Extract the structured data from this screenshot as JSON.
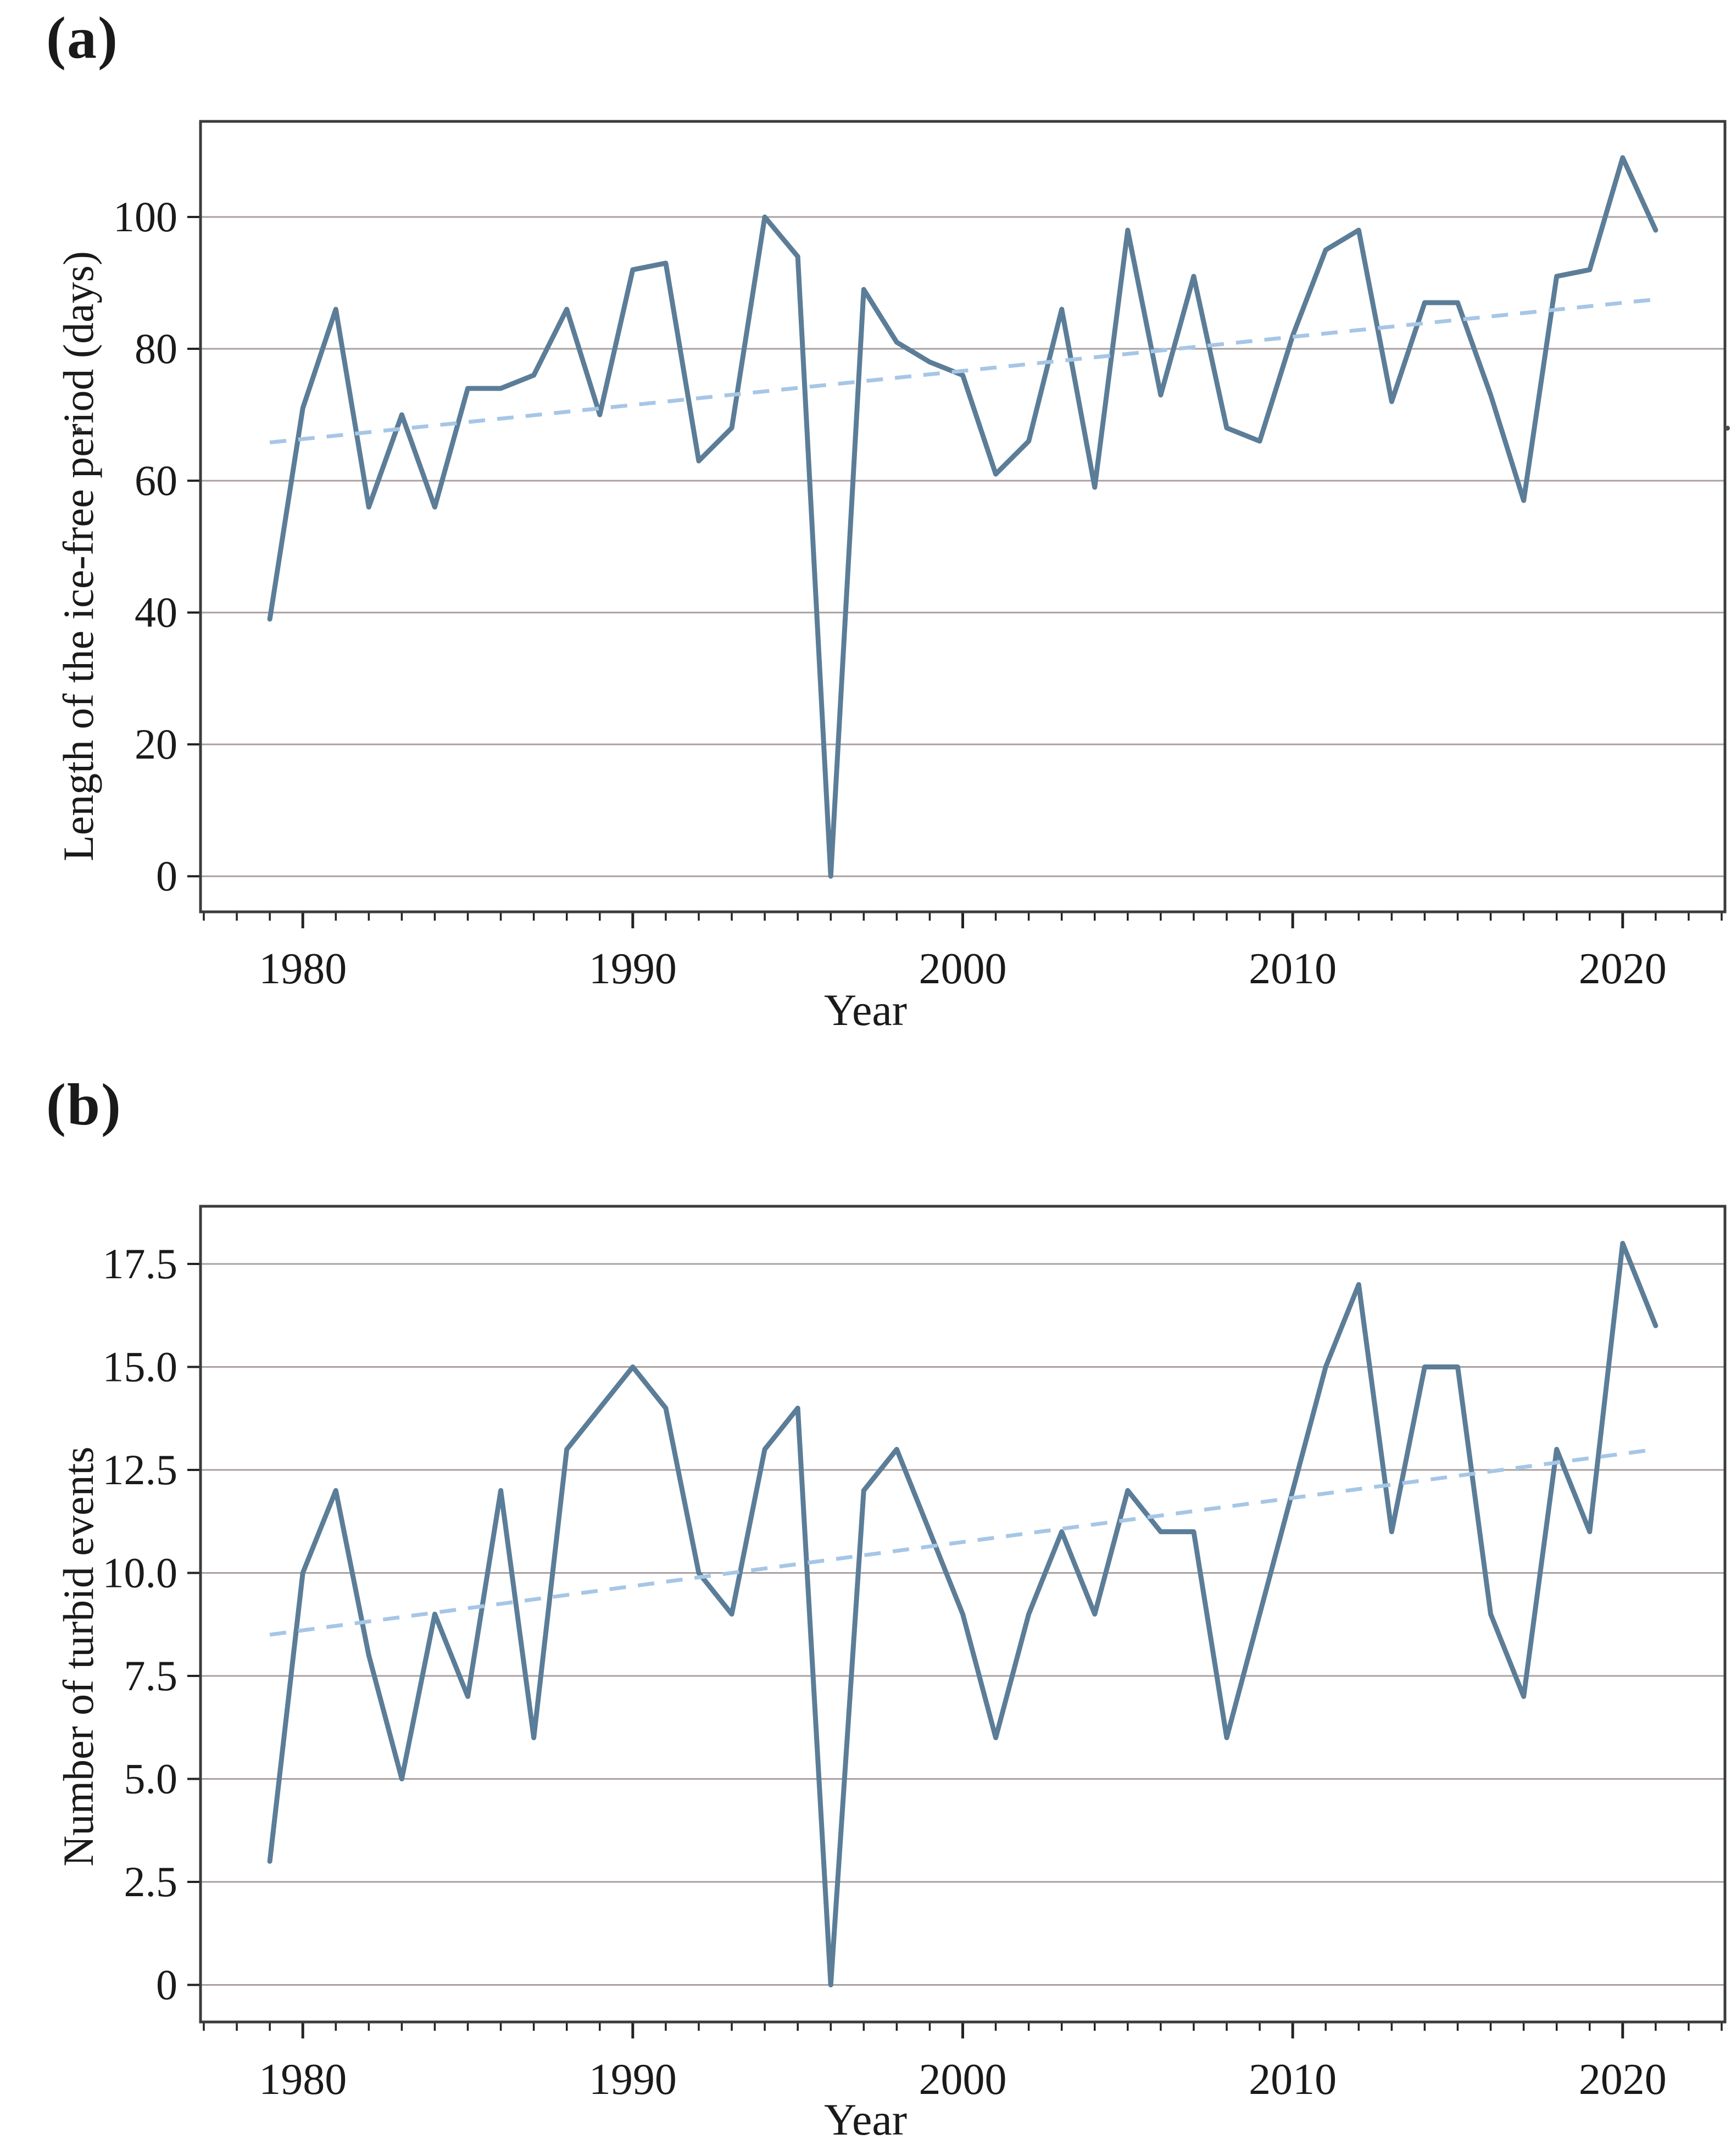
{
  "panel_a": {
    "label": "(a)",
    "ylabel": "Length of the ice-free period (days)",
    "xlabel": "Year"
  },
  "panel_b": {
    "label": "(b)",
    "ylabel": "Number of turbid events",
    "xlabel": "Year"
  },
  "colors": {
    "series_line": "#5b7d98",
    "trend_line": "#a6c6e6",
    "gridline": "#aba0a0",
    "axis_border": "#3c3c3c",
    "tick": "#222222",
    "text": "#1a1a1a"
  },
  "chart_data": [
    {
      "id": "a",
      "type": "line",
      "title": "",
      "xlabel": "Year",
      "ylabel": "Length of the ice-free period (days)",
      "x": [
        1979,
        1980,
        1981,
        1982,
        1983,
        1984,
        1985,
        1986,
        1987,
        1988,
        1989,
        1990,
        1991,
        1992,
        1993,
        1994,
        1995,
        1996,
        1997,
        1998,
        1999,
        2000,
        2001,
        2002,
        2003,
        2004,
        2005,
        2006,
        2007,
        2008,
        2009,
        2010,
        2011,
        2012,
        2013,
        2014,
        2015,
        2016,
        2017,
        2018,
        2019,
        2020,
        2021
      ],
      "series": [
        {
          "name": "annual ice-free period (days)",
          "values": [
            39,
            71,
            86,
            56,
            70,
            56,
            74,
            74,
            76,
            86,
            70,
            92,
            93,
            63,
            68,
            100,
            94,
            0,
            89,
            81,
            78,
            76,
            61,
            66,
            86,
            59,
            98,
            73,
            91,
            68,
            66,
            82,
            95,
            98,
            72,
            87,
            87,
            73,
            57,
            91,
            92,
            109,
            98
          ]
        },
        {
          "name": "linear trend",
          "style": "dashed",
          "endpoints": [
            [
              1979,
              65.8
            ],
            [
              2021,
              87.5
            ]
          ]
        }
      ],
      "xlim": [
        1976.9,
        2023.1
      ],
      "ylim": [
        -5.4,
        114.5
      ],
      "yticks": [
        0,
        20,
        40,
        60,
        80,
        100
      ],
      "ytick_labels": [
        "0",
        "20",
        "40",
        "60",
        "80",
        "100"
      ],
      "xticks": [
        1980,
        1990,
        2000,
        2010,
        2020
      ],
      "xtick_labels": [
        "1980",
        "1990",
        "2000",
        "2010",
        "2020"
      ],
      "minor_xticks_every_year": true,
      "grid": true,
      "legend": "none"
    },
    {
      "id": "b",
      "type": "line",
      "title": "",
      "xlabel": "Year",
      "ylabel": "Number of turbid events",
      "x": [
        1979,
        1980,
        1981,
        1982,
        1983,
        1984,
        1985,
        1986,
        1987,
        1988,
        1989,
        1990,
        1991,
        1992,
        1993,
        1994,
        1995,
        1996,
        1997,
        1998,
        1999,
        2000,
        2001,
        2002,
        2003,
        2004,
        2005,
        2006,
        2007,
        2008,
        2009,
        2010,
        2011,
        2012,
        2013,
        2014,
        2015,
        2016,
        2017,
        2018,
        2019,
        2020,
        2021
      ],
      "series": [
        {
          "name": "annual number of turbid events",
          "values": [
            3,
            10,
            12,
            8,
            5,
            9,
            7,
            12,
            6,
            13,
            14,
            15,
            14,
            10,
            9,
            13,
            14,
            0,
            12,
            13,
            11,
            9,
            6,
            9,
            11,
            9,
            12,
            11,
            11,
            6,
            9,
            12,
            15,
            17,
            11,
            15,
            15,
            9,
            7,
            13,
            11,
            18,
            16
          ]
        },
        {
          "name": "linear trend",
          "style": "dashed",
          "endpoints": [
            [
              1979,
              8.5
            ],
            [
              2021,
              13.0
            ]
          ]
        }
      ],
      "xlim": [
        1976.9,
        2023.1
      ],
      "ylim": [
        -0.9,
        18.9
      ],
      "yticks": [
        0,
        2.5,
        5,
        7.5,
        10,
        12.5,
        15,
        17.5
      ],
      "ytick_labels": [
        "0",
        "2.5",
        "5.0",
        "7.5",
        "10.0",
        "12.5",
        "15.0",
        "17.5"
      ],
      "xticks": [
        1980,
        1990,
        2000,
        2010,
        2020
      ],
      "xtick_labels": [
        "1980",
        "1990",
        "2000",
        "2010",
        "2020"
      ],
      "minor_xticks_every_year": true,
      "grid": true,
      "legend": "none"
    }
  ]
}
